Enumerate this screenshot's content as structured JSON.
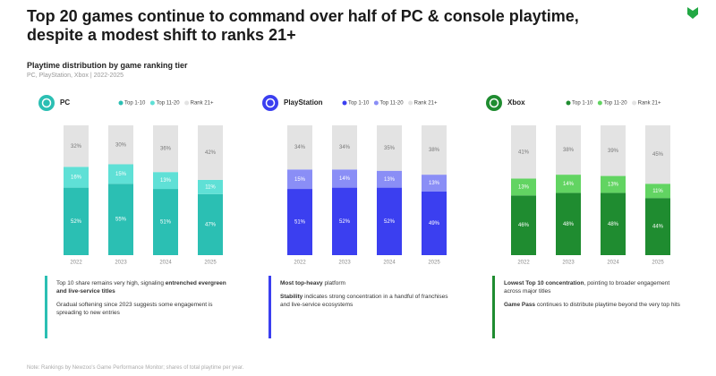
{
  "title": "Top 20 games continue to command over half of PC & console playtime, despite a modest shift to ranks 21+",
  "subtitle": "Playtime distribution by game ranking tier",
  "source": "PC, PlayStation, Xbox | 2022-2025",
  "footnote": "Note: Rankings by Newzoo's Game Performance Monitor; shares of total playtime per year.",
  "chart_data": [
    {
      "type": "bar",
      "stacked": true,
      "title": "PC",
      "categories": [
        "2022",
        "2023",
        "2024",
        "2025"
      ],
      "ylim": [
        0,
        100
      ],
      "series": [
        {
          "name": "Top 1-10",
          "color": "#2bbfb3",
          "values": [
            52,
            55,
            51,
            47
          ],
          "value_labels": [
            "52%",
            "55%",
            "51%",
            "47%"
          ]
        },
        {
          "name": "Top 11-20",
          "color": "#5fe0d6",
          "values": [
            16,
            15,
            13,
            11
          ],
          "value_labels": [
            "16%",
            "15%",
            "13%",
            "11%"
          ]
        },
        {
          "name": "Rank 21+",
          "color": "#e3e3e3",
          "values": [
            32,
            30,
            36,
            42
          ],
          "value_labels": [
            "32%",
            "30%",
            "36%",
            "42%"
          ]
        }
      ]
    },
    {
      "type": "bar",
      "stacked": true,
      "title": "PlayStation",
      "categories": [
        "2022",
        "2023",
        "2024",
        "2025"
      ],
      "ylim": [
        0,
        100
      ],
      "series": [
        {
          "name": "Top 1-10",
          "color": "#3b3ff0",
          "values": [
            51,
            52,
            52,
            49
          ],
          "value_labels": [
            "51%",
            "52%",
            "52%",
            "49%"
          ]
        },
        {
          "name": "Top 11-20",
          "color": "#8a8ef6",
          "values": [
            15,
            14,
            13,
            13
          ],
          "value_labels": [
            "15%",
            "14%",
            "13%",
            "13%"
          ]
        },
        {
          "name": "Rank 21+",
          "color": "#e3e3e3",
          "values": [
            34,
            34,
            35,
            38
          ],
          "value_labels": [
            "34%",
            "34%",
            "35%",
            "38%"
          ]
        }
      ]
    },
    {
      "type": "bar",
      "stacked": true,
      "title": "Xbox",
      "categories": [
        "2022",
        "2023",
        "2024",
        "2025"
      ],
      "ylim": [
        0,
        100
      ],
      "series": [
        {
          "name": "Top 1-10",
          "color": "#1f8c30",
          "values": [
            46,
            48,
            48,
            44
          ],
          "value_labels": [
            "46%",
            "48%",
            "48%",
            "44%"
          ]
        },
        {
          "name": "Top 11-20",
          "color": "#62d462",
          "values": [
            13,
            14,
            13,
            11
          ],
          "value_labels": [
            "13%",
            "14%",
            "13%",
            "11%"
          ]
        },
        {
          "name": "Rank 21+",
          "color": "#e3e3e3",
          "values": [
            41,
            38,
            39,
            45
          ],
          "value_labels": [
            "41%",
            "38%",
            "39%",
            "45%"
          ]
        }
      ]
    }
  ],
  "notes": [
    [
      [
        {
          "text": "Top 10 share remains very high, signaling ",
          "bold": false
        },
        {
          "text": "entrenched evergreen and live-service titles",
          "bold": true
        }
      ],
      [
        {
          "text": "Gradual softening since 2023 suggests some engagement is spreading to new entries",
          "bold": false
        }
      ]
    ],
    [
      [
        {
          "text": "Most top-heavy",
          "bold": true
        },
        {
          "text": " platform",
          "bold": false
        }
      ],
      [
        {
          "text": "Stability",
          "bold": true
        },
        {
          "text": " indicates strong concentration in a handful of franchises and live-service ecosystems",
          "bold": false
        }
      ]
    ],
    [
      [
        {
          "text": "Lowest Top 10 concentration",
          "bold": true
        },
        {
          "text": ", pointing to broader engagement across major titles",
          "bold": false
        }
      ],
      [
        {
          "text": "Game Pass",
          "bold": true
        },
        {
          "text": " continues to distribute playtime beyond the very top hits",
          "bold": false
        }
      ]
    ]
  ]
}
